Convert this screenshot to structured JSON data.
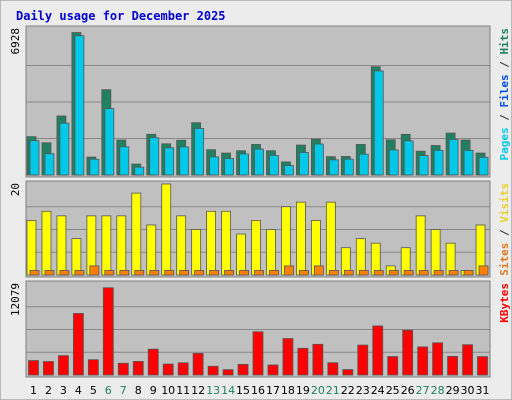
{
  "chart_data": {
    "type": "bar",
    "title": "Daily usage for December 2025",
    "days": [
      "1",
      "2",
      "3",
      "4",
      "5",
      "6",
      "7",
      "8",
      "9",
      "10",
      "11",
      "12",
      "13",
      "14",
      "15",
      "16",
      "17",
      "18",
      "19",
      "20",
      "21",
      "22",
      "23",
      "24",
      "25",
      "26",
      "27",
      "28",
      "29",
      "30",
      "31"
    ],
    "weekend_days": [
      "6",
      "7",
      "13",
      "14",
      "20",
      "21",
      "27",
      "28"
    ],
    "panels": [
      {
        "id": "hits_files_pages",
        "ymax_label": "6928",
        "ymax": 6928,
        "side_label": [
          "Pages",
          " / ",
          "Files",
          " / ",
          "Hits"
        ],
        "side_colors": [
          "#00c8e8",
          "#333333",
          "#0050e0",
          "#333333",
          "#208060"
        ],
        "series": [
          {
            "name": "Hits",
            "color": "#208060",
            "values": [
              1820,
              1530,
              2800,
              6760,
              850,
              4050,
              1660,
              520,
              1930,
              1480,
              1650,
              2480,
              1200,
              1040,
              1150,
              1450,
              1150,
              620,
              1420,
              1700,
              870,
              880,
              1450,
              5140,
              1670,
              1930,
              1130,
              1400,
              1990,
              1660,
              1040
            ]
          },
          {
            "name": "Files",
            "color": "#00c8e8",
            "values": [
              1630,
              1010,
              2460,
              6610,
              750,
              3150,
              1340,
              370,
              1770,
              1290,
              1330,
              2210,
              860,
              780,
              1000,
              1230,
              930,
              450,
              1070,
              1470,
              720,
              750,
              990,
              4940,
              1190,
              1620,
              920,
              1170,
              1690,
              1170,
              840
            ]
          }
        ]
      },
      {
        "id": "visits_sites",
        "ymax_label": "20",
        "ymax": 20,
        "side_label": [
          "Sites",
          " / ",
          "Visits"
        ],
        "side_colors": [
          "#e07820",
          "#333333",
          "#e8d030"
        ],
        "series": [
          {
            "name": "Visits",
            "color": "#ffff00",
            "values": [
              12,
              14,
              13,
              8,
              13,
              13,
              13,
              18,
              11,
              20,
              13,
              10,
              14,
              14,
              9,
              12,
              10,
              15,
              16,
              12,
              16,
              6,
              8,
              7,
              2,
              6,
              13,
              10,
              7,
              1,
              11
            ]
          },
          {
            "name": "Sites",
            "color": "#ff8000",
            "values": [
              1,
              1,
              1,
              1,
              2,
              1,
              1,
              1,
              1,
              1,
              1,
              1,
              1,
              1,
              1,
              1,
              1,
              2,
              1,
              2,
              1,
              1,
              1,
              1,
              1,
              1,
              1,
              1,
              1,
              1,
              2
            ]
          }
        ]
      },
      {
        "id": "kbytes",
        "ymax_label": "12079",
        "ymax": 12079,
        "side_label": [
          "KBytes"
        ],
        "side_colors": [
          "#ff0000"
        ],
        "series": [
          {
            "name": "KBytes",
            "color": "#ff0000",
            "values": [
              1920,
              1790,
              2570,
              8170,
              2030,
              11580,
              1560,
              1800,
              3430,
              1450,
              1620,
              2870,
              1160,
              710,
              1410,
              5740,
              1330,
              4840,
              3540,
              4070,
              1630,
              720,
              3970,
              6510,
              2450,
              5940,
              3730,
              4270,
              2470,
              4020,
              2440
            ]
          }
        ]
      }
    ]
  }
}
